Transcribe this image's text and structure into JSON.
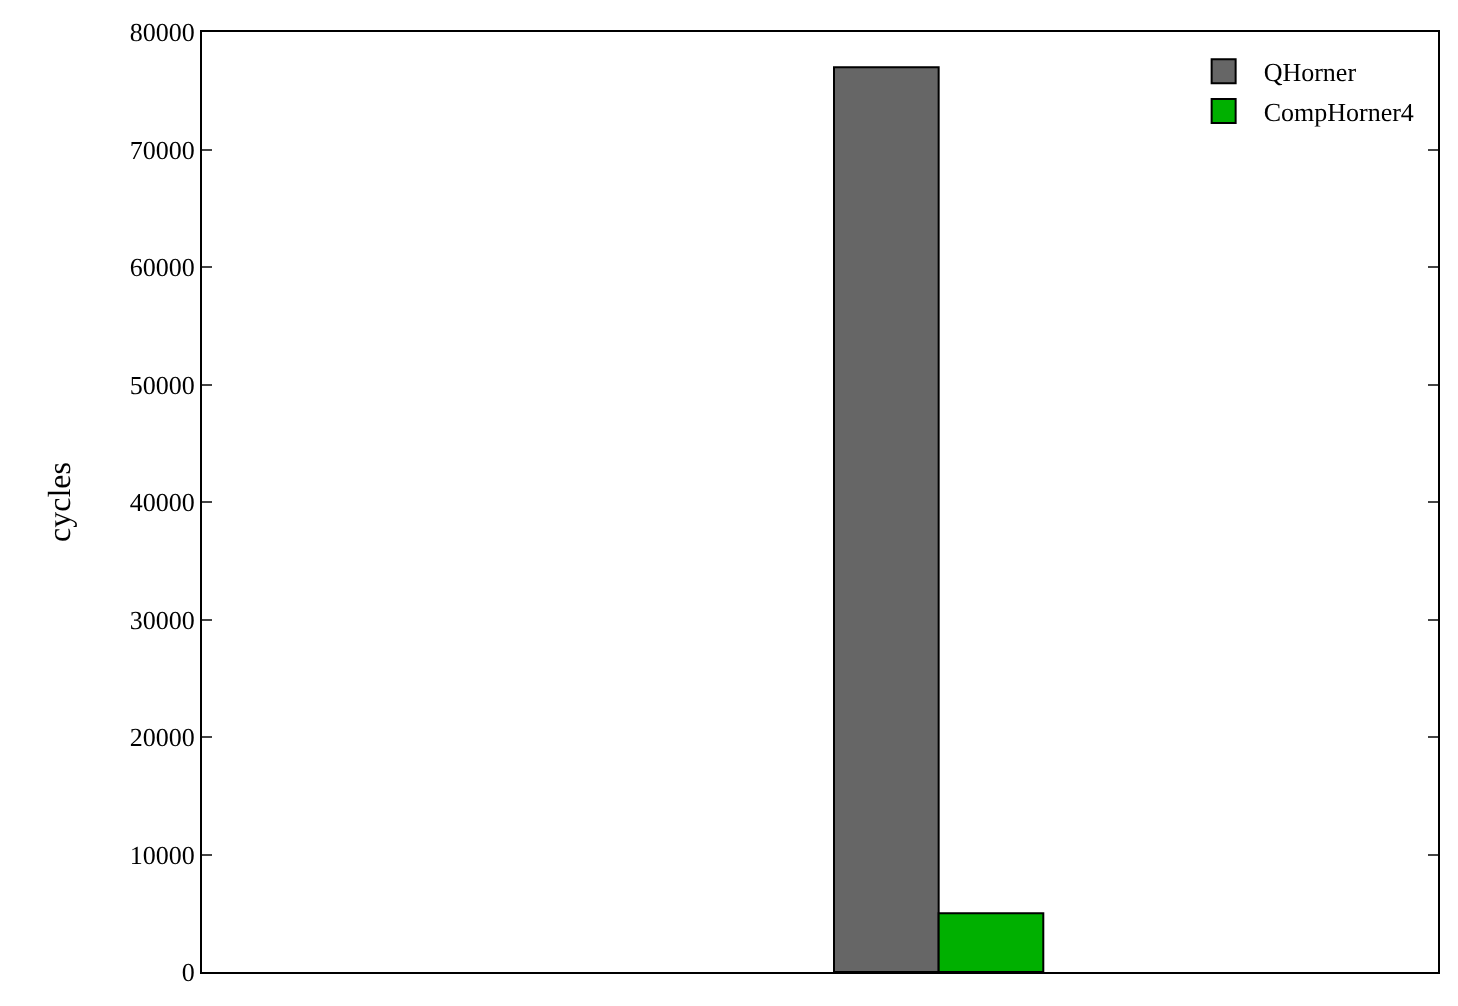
{
  "chart_data": {
    "type": "bar",
    "ylabel": "cycles",
    "categories": [
      null
    ],
    "series": [
      {
        "name": "QHorner",
        "color": "#666666",
        "values": [
          77000
        ]
      },
      {
        "name": "CompHorner4",
        "color": "#00b000",
        "values": [
          5000
        ]
      }
    ],
    "ylim": [
      0,
      80000
    ],
    "yticks": [
      0,
      10000,
      20000,
      30000,
      40000,
      50000,
      60000,
      70000,
      80000
    ],
    "legend": "top right"
  }
}
